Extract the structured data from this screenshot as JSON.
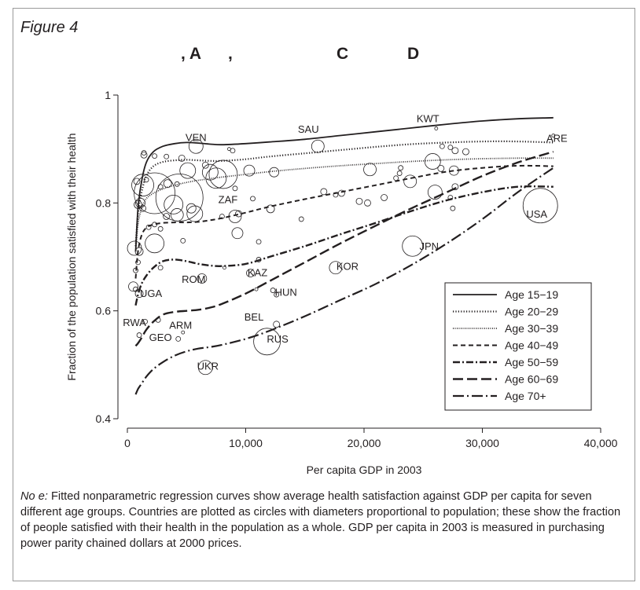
{
  "figure": {
    "label": "Figure 4",
    "heading_fragments": [
      ", A",
      ",",
      "C",
      "D"
    ]
  },
  "note": {
    "prefix": "No e:",
    "text": " Fitted nonparametric regression curves show average health satisfaction against GDP per capita for seven different age groups. Countries are plotted as circles with diameters proportional to population; these show the fraction of people satisfied with their health in the population as a whole. GDP per capita in 2003 is measured in purchasing power parity chained dollars at 2000 prices."
  },
  "chart_data": {
    "type": "scatter",
    "title": "",
    "xlabel": "Per capita GDP in 2003",
    "ylabel": "Fraction of the population satisfied with their health",
    "xlim": [
      0,
      40000
    ],
    "ylim": [
      0.4,
      1.0
    ],
    "x_ticks": [
      0,
      10000,
      20000,
      30000,
      40000
    ],
    "x_tick_labels": [
      "0",
      "10,000",
      "20,000",
      "30,000",
      "40,000"
    ],
    "y_ticks": [
      0.4,
      0.6,
      0.8,
      1.0
    ],
    "y_tick_labels": [
      "0.4",
      "0.6",
      "0.8",
      "1"
    ],
    "grid": false,
    "legend_position": "lower-right",
    "series": [
      {
        "name": "Age 15−19",
        "style": "solid",
        "x": [
          700,
          900,
          1200,
          1600,
          2200,
          3000,
          4000,
          5000,
          6000,
          7000,
          8000,
          10000,
          12000,
          15000,
          18000,
          21000,
          24000,
          27000,
          30000,
          33000,
          36000
        ],
        "y": [
          0.71,
          0.79,
          0.84,
          0.875,
          0.895,
          0.905,
          0.91,
          0.912,
          0.911,
          0.909,
          0.908,
          0.91,
          0.913,
          0.918,
          0.925,
          0.932,
          0.939,
          0.946,
          0.952,
          0.956,
          0.958
        ]
      },
      {
        "name": "Age 20−29",
        "style": "dotted",
        "x": [
          700,
          900,
          1200,
          1600,
          2200,
          3000,
          4000,
          5000,
          6000,
          7000,
          8000,
          10000,
          12000,
          15000,
          18000,
          21000,
          24000,
          27000,
          30000,
          33000,
          36000
        ],
        "y": [
          0.72,
          0.78,
          0.82,
          0.85,
          0.868,
          0.876,
          0.879,
          0.88,
          0.879,
          0.878,
          0.878,
          0.881,
          0.886,
          0.892,
          0.898,
          0.904,
          0.909,
          0.912,
          0.914,
          0.914,
          0.912
        ]
      },
      {
        "name": "Age 30−39",
        "style": "dotted-fine",
        "x": [
          700,
          900,
          1200,
          1600,
          2200,
          3000,
          4000,
          5000,
          6000,
          7000,
          8000,
          10000,
          12000,
          15000,
          18000,
          21000,
          24000,
          27000,
          30000,
          33000,
          36000
        ],
        "y": [
          0.71,
          0.76,
          0.79,
          0.808,
          0.818,
          0.826,
          0.833,
          0.838,
          0.842,
          0.845,
          0.848,
          0.853,
          0.858,
          0.864,
          0.869,
          0.873,
          0.877,
          0.88,
          0.882,
          0.883,
          0.883
        ]
      },
      {
        "name": "Age 40−49",
        "style": "dashed",
        "x": [
          700,
          900,
          1200,
          1600,
          2200,
          3000,
          4000,
          5000,
          6000,
          7000,
          8000,
          10000,
          12000,
          15000,
          18000,
          21000,
          24000,
          27000,
          30000,
          33000,
          36000
        ],
        "y": [
          0.66,
          0.71,
          0.74,
          0.754,
          0.76,
          0.763,
          0.764,
          0.764,
          0.765,
          0.768,
          0.772,
          0.782,
          0.793,
          0.807,
          0.82,
          0.833,
          0.846,
          0.858,
          0.865,
          0.869,
          0.868
        ]
      },
      {
        "name": "Age 50−59",
        "style": "dash-dot",
        "x": [
          700,
          900,
          1200,
          1600,
          2200,
          3000,
          4000,
          5000,
          6000,
          7000,
          8000,
          10000,
          12000,
          15000,
          18000,
          21000,
          24000,
          27000,
          30000,
          33000,
          36000
        ],
        "y": [
          0.61,
          0.63,
          0.65,
          0.665,
          0.68,
          0.692,
          0.695,
          0.692,
          0.687,
          0.684,
          0.683,
          0.687,
          0.7,
          0.72,
          0.742,
          0.763,
          0.785,
          0.805,
          0.82,
          0.83,
          0.83
        ]
      },
      {
        "name": "Age 60−69",
        "style": "long-dash",
        "x": [
          700,
          900,
          1200,
          1600,
          2200,
          3000,
          4000,
          5000,
          6000,
          7000,
          8000,
          10000,
          12000,
          15000,
          18000,
          21000,
          24000,
          27000,
          30000,
          33000,
          36000
        ],
        "y": [
          0.535,
          0.54,
          0.55,
          0.565,
          0.58,
          0.593,
          0.598,
          0.6,
          0.602,
          0.606,
          0.613,
          0.632,
          0.655,
          0.69,
          0.725,
          0.758,
          0.79,
          0.82,
          0.85,
          0.875,
          0.895
        ]
      },
      {
        "name": "Age 70+",
        "style": "long-dash-dot",
        "x": [
          700,
          900,
          1200,
          1600,
          2200,
          3000,
          4000,
          5000,
          6000,
          7000,
          8000,
          10000,
          12000,
          15000,
          18000,
          21000,
          24000,
          27000,
          30000,
          33000,
          36000
        ],
        "y": [
          0.445,
          0.455,
          0.465,
          0.478,
          0.492,
          0.505,
          0.517,
          0.525,
          0.53,
          0.533,
          0.537,
          0.548,
          0.563,
          0.59,
          0.62,
          0.65,
          0.685,
          0.725,
          0.77,
          0.82,
          0.865
        ]
      }
    ],
    "country_labels": [
      {
        "text": "VEN",
        "x": 5800,
        "y": 0.915
      },
      {
        "text": "SAU",
        "x": 15300,
        "y": 0.93
      },
      {
        "text": "KWT",
        "x": 25400,
        "y": 0.95
      },
      {
        "text": "ARE",
        "x": 36300,
        "y": 0.913
      },
      {
        "text": "ZAF",
        "x": 8500,
        "y": 0.8
      },
      {
        "text": "USA",
        "x": 34600,
        "y": 0.773
      },
      {
        "text": "JPN",
        "x": 25500,
        "y": 0.713
      },
      {
        "text": "KOR",
        "x": 18600,
        "y": 0.676
      },
      {
        "text": "KAZ",
        "x": 11000,
        "y": 0.664
      },
      {
        "text": "ROM",
        "x": 5600,
        "y": 0.652
      },
      {
        "text": "HUN",
        "x": 13400,
        "y": 0.628
      },
      {
        "text": "UGA",
        "x": 2000,
        "y": 0.626
      },
      {
        "text": "BEL",
        "x": 10700,
        "y": 0.582
      },
      {
        "text": "RWA",
        "x": 600,
        "y": 0.572
      },
      {
        "text": "ARM",
        "x": 4500,
        "y": 0.567
      },
      {
        "text": "GEO",
        "x": 2800,
        "y": 0.544
      },
      {
        "text": "RUS",
        "x": 12700,
        "y": 0.541
      },
      {
        "text": "UKR",
        "x": 6800,
        "y": 0.491
      }
    ],
    "countries": [
      {
        "x": 5800,
        "y": 0.905,
        "s": 9
      },
      {
        "x": 16100,
        "y": 0.905,
        "s": 8
      },
      {
        "x": 26100,
        "y": 0.938,
        "s": 2
      },
      {
        "x": 36000,
        "y": 0.925,
        "s": 2
      },
      {
        "x": 8600,
        "y": 0.9,
        "s": 2
      },
      {
        "x": 8900,
        "y": 0.897,
        "s": 3
      },
      {
        "x": 1400,
        "y": 0.893,
        "s": 3
      },
      {
        "x": 1400,
        "y": 0.889,
        "s": 4
      },
      {
        "x": 2300,
        "y": 0.887,
        "s": 3
      },
      {
        "x": 3300,
        "y": 0.886,
        "s": 3
      },
      {
        "x": 4600,
        "y": 0.883,
        "s": 4
      },
      {
        "x": 27300,
        "y": 0.903,
        "s": 3
      },
      {
        "x": 27700,
        "y": 0.897,
        "s": 4
      },
      {
        "x": 26600,
        "y": 0.905,
        "s": 3
      },
      {
        "x": 28600,
        "y": 0.895,
        "s": 4
      },
      {
        "x": 25800,
        "y": 0.877,
        "s": 10
      },
      {
        "x": 26500,
        "y": 0.864,
        "s": 4
      },
      {
        "x": 27600,
        "y": 0.86,
        "s": 6
      },
      {
        "x": 20500,
        "y": 0.862,
        "s": 8
      },
      {
        "x": 10300,
        "y": 0.86,
        "s": 7
      },
      {
        "x": 12400,
        "y": 0.857,
        "s": 6
      },
      {
        "x": 5100,
        "y": 0.86,
        "s": 10
      },
      {
        "x": 6600,
        "y": 0.87,
        "s": 4
      },
      {
        "x": 7000,
        "y": 0.857,
        "s": 10
      },
      {
        "x": 7500,
        "y": 0.846,
        "s": 13
      },
      {
        "x": 8100,
        "y": 0.853,
        "s": 18
      },
      {
        "x": 22700,
        "y": 0.846,
        "s": 3
      },
      {
        "x": 23100,
        "y": 0.865,
        "s": 3
      },
      {
        "x": 23900,
        "y": 0.84,
        "s": 8
      },
      {
        "x": 26000,
        "y": 0.82,
        "s": 9
      },
      {
        "x": 27700,
        "y": 0.83,
        "s": 4
      },
      {
        "x": 27300,
        "y": 0.81,
        "s": 3
      },
      {
        "x": 27500,
        "y": 0.79,
        "s": 3
      },
      {
        "x": 3400,
        "y": 0.836,
        "s": 5
      },
      {
        "x": 4200,
        "y": 0.835,
        "s": 3
      },
      {
        "x": 2800,
        "y": 0.83,
        "s": 3
      },
      {
        "x": 1600,
        "y": 0.843,
        "s": 3
      },
      {
        "x": 1300,
        "y": 0.833,
        "s": 14
      },
      {
        "x": 800,
        "y": 0.84,
        "s": 4
      },
      {
        "x": 2300,
        "y": 0.818,
        "s": 26
      },
      {
        "x": 4400,
        "y": 0.81,
        "s": 30
      },
      {
        "x": 1100,
        "y": 0.8,
        "s": 6
      },
      {
        "x": 1300,
        "y": 0.79,
        "s": 4
      },
      {
        "x": 900,
        "y": 0.797,
        "s": 5
      },
      {
        "x": 3900,
        "y": 0.797,
        "s": 12
      },
      {
        "x": 5400,
        "y": 0.79,
        "s": 6
      },
      {
        "x": 5700,
        "y": 0.78,
        "s": 10
      },
      {
        "x": 4200,
        "y": 0.778,
        "s": 8
      },
      {
        "x": 3300,
        "y": 0.775,
        "s": 4
      },
      {
        "x": 2300,
        "y": 0.76,
        "s": 3
      },
      {
        "x": 1800,
        "y": 0.755,
        "s": 3
      },
      {
        "x": 2800,
        "y": 0.752,
        "s": 3
      },
      {
        "x": 9400,
        "y": 0.78,
        "s": 4
      },
      {
        "x": 9100,
        "y": 0.775,
        "s": 8
      },
      {
        "x": 12100,
        "y": 0.789,
        "s": 5
      },
      {
        "x": 14700,
        "y": 0.77,
        "s": 3
      },
      {
        "x": 16600,
        "y": 0.821,
        "s": 4
      },
      {
        "x": 17600,
        "y": 0.815,
        "s": 3
      },
      {
        "x": 19600,
        "y": 0.803,
        "s": 4
      },
      {
        "x": 20300,
        "y": 0.8,
        "s": 4
      },
      {
        "x": 21700,
        "y": 0.81,
        "s": 4
      },
      {
        "x": 18100,
        "y": 0.818,
        "s": 4
      },
      {
        "x": 9100,
        "y": 0.827,
        "s": 3
      },
      {
        "x": 10600,
        "y": 0.808,
        "s": 3
      },
      {
        "x": 9300,
        "y": 0.744,
        "s": 7
      },
      {
        "x": 11100,
        "y": 0.728,
        "s": 3
      },
      {
        "x": 2300,
        "y": 0.725,
        "s": 12
      },
      {
        "x": 600,
        "y": 0.716,
        "s": 9
      },
      {
        "x": 1000,
        "y": 0.71,
        "s": 5
      },
      {
        "x": 900,
        "y": 0.69,
        "s": 3
      },
      {
        "x": 700,
        "y": 0.675,
        "s": 3
      },
      {
        "x": 11100,
        "y": 0.695,
        "s": 3
      },
      {
        "x": 2800,
        "y": 0.68,
        "s": 3
      },
      {
        "x": 4700,
        "y": 0.73,
        "s": 3
      },
      {
        "x": 34900,
        "y": 0.795,
        "s": 22
      },
      {
        "x": 24100,
        "y": 0.72,
        "s": 13
      },
      {
        "x": 17600,
        "y": 0.68,
        "s": 8
      },
      {
        "x": 10400,
        "y": 0.67,
        "s": 5
      },
      {
        "x": 6300,
        "y": 0.66,
        "s": 6
      },
      {
        "x": 12300,
        "y": 0.638,
        "s": 3
      },
      {
        "x": 12600,
        "y": 0.63,
        "s": 3
      },
      {
        "x": 10900,
        "y": 0.64,
        "s": 2
      },
      {
        "x": 500,
        "y": 0.645,
        "s": 6
      },
      {
        "x": 1000,
        "y": 0.632,
        "s": 5
      },
      {
        "x": 700,
        "y": 0.64,
        "s": 3
      },
      {
        "x": 1500,
        "y": 0.58,
        "s": 3
      },
      {
        "x": 2600,
        "y": 0.583,
        "s": 3
      },
      {
        "x": 1000,
        "y": 0.555,
        "s": 3
      },
      {
        "x": 4700,
        "y": 0.56,
        "s": 2
      },
      {
        "x": 4300,
        "y": 0.548,
        "s": 3
      },
      {
        "x": 12600,
        "y": 0.575,
        "s": 4
      },
      {
        "x": 11800,
        "y": 0.543,
        "s": 17
      },
      {
        "x": 6600,
        "y": 0.495,
        "s": 9
      },
      {
        "x": 8200,
        "y": 0.68,
        "s": 2
      },
      {
        "x": 8000,
        "y": 0.775,
        "s": 3
      },
      {
        "x": 23000,
        "y": 0.855,
        "s": 3
      }
    ]
  }
}
